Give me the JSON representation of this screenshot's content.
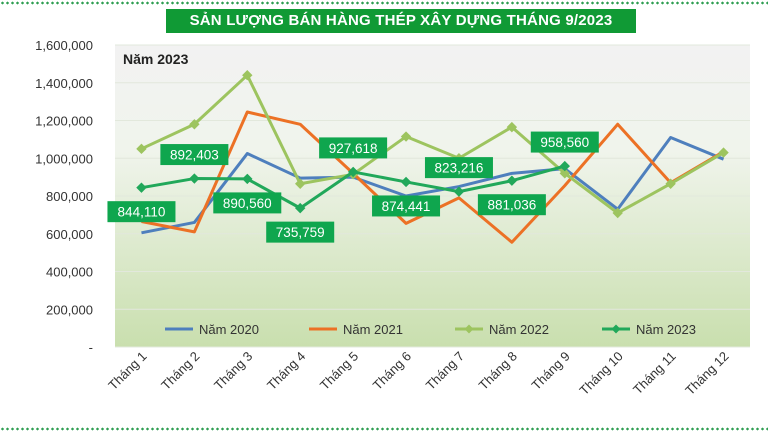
{
  "title": "SẢN LƯỢNG BÁN HÀNG THÉP XÂY DỰNG THÁNG 9/2023",
  "chart_data": {
    "type": "line",
    "subtitle": "Năm 2023",
    "categories": [
      "Tháng 1",
      "Tháng 2",
      "Tháng 3",
      "Tháng 4",
      "Tháng 5",
      "Tháng 6",
      "Tháng 7",
      "Tháng 8",
      "Tháng 9",
      "Tháng 10",
      "Tháng 11",
      "Tháng 12"
    ],
    "ylim": [
      0,
      1600000
    ],
    "yticks": [
      0,
      200000,
      400000,
      600000,
      800000,
      1000000,
      1200000,
      1400000,
      1600000
    ],
    "ytick_labels": [
      "-",
      "200,000",
      "400,000",
      "600,000",
      "800,000",
      "1,000,000",
      "1,200,000",
      "1,400,000",
      "1,600,000"
    ],
    "grid": true,
    "legend_position": "bottom",
    "series": [
      {
        "name": "Năm 2020",
        "color": "#4e7fbd",
        "marker": "none",
        "values": [
          605000,
          660000,
          1025000,
          895000,
          900000,
          800000,
          850000,
          920000,
          945000,
          730000,
          1110000,
          995000
        ]
      },
      {
        "name": "Năm 2021",
        "color": "#ec7125",
        "marker": "none",
        "values": [
          665000,
          610000,
          1245000,
          1180000,
          920000,
          655000,
          790000,
          555000,
          855000,
          1180000,
          870000,
          1035000
        ]
      },
      {
        "name": "Năm 2022",
        "color": "#9dc45f",
        "marker": "diamond",
        "values": [
          1050000,
          1180000,
          1440000,
          865000,
          915000,
          1115000,
          1000000,
          1165000,
          920000,
          710000,
          865000,
          1030000
        ]
      },
      {
        "name": "Năm 2023",
        "color": "#21a85a",
        "marker": "diamond",
        "values": [
          844110,
          892403,
          890560,
          735759,
          927618,
          874441,
          823216,
          881036,
          958560,
          null,
          null,
          null
        ],
        "data_labels": [
          "844,110",
          "892,403",
          "890,560",
          "735,759",
          "927,618",
          "874,441",
          "823,216",
          "881,036",
          "958,560"
        ]
      }
    ]
  }
}
